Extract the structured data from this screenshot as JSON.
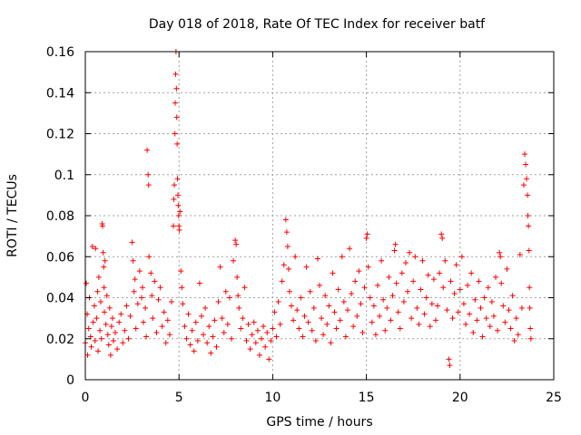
{
  "chart_data": {
    "type": "scatter",
    "title": "Day 018 of 2018, Rate Of TEC Index for receiver batf",
    "xlabel": "GPS time / hours",
    "ylabel": "ROTI / TECUs",
    "xlim": [
      0,
      25
    ],
    "ylim": [
      0,
      0.16
    ],
    "xticks": [
      0,
      5,
      10,
      15,
      20,
      25
    ],
    "yticks": [
      0,
      0.02,
      0.04,
      0.06,
      0.08,
      0.1,
      0.12,
      0.14,
      0.16
    ],
    "xtick_labels": [
      "0",
      "5",
      "10",
      "15",
      "20",
      "25"
    ],
    "ytick_labels": [
      "0",
      "0.02",
      "0.04",
      "0.06",
      "0.08",
      "0.1",
      "0.12",
      "0.14",
      "0.16"
    ],
    "grid": true,
    "marker": "+",
    "color": "#ff0000",
    "series": [
      {
        "values": [
          [
            0.0,
            0.018
          ],
          [
            0.05,
            0.047
          ],
          [
            0.1,
            0.032
          ],
          [
            0.12,
            0.012
          ],
          [
            0.18,
            0.025
          ],
          [
            0.22,
            0.04
          ],
          [
            0.28,
            0.021
          ],
          [
            0.32,
            0.016
          ],
          [
            0.38,
            0.065
          ],
          [
            0.42,
            0.028
          ],
          [
            0.48,
            0.036
          ],
          [
            0.52,
            0.019
          ],
          [
            0.55,
            0.064
          ],
          [
            0.6,
            0.03
          ],
          [
            0.65,
            0.043
          ],
          [
            0.68,
            0.014
          ],
          [
            0.72,
            0.05
          ],
          [
            0.78,
            0.024
          ],
          [
            0.82,
            0.038
          ],
          [
            0.86,
            0.02
          ],
          [
            0.9,
            0.076
          ],
          [
            0.92,
            0.075
          ],
          [
            0.95,
            0.062
          ],
          [
            0.98,
            0.055
          ],
          [
            1.0,
            0.045
          ],
          [
            1.02,
            0.033
          ],
          [
            1.05,
            0.058
          ],
          [
            1.1,
            0.027
          ],
          [
            1.15,
            0.041
          ],
          [
            1.2,
            0.022
          ],
          [
            1.25,
            0.017
          ],
          [
            1.3,
            0.035
          ],
          [
            1.35,
            0.012
          ],
          [
            1.4,
            0.026
          ],
          [
            1.45,
            0.03
          ],
          [
            1.5,
            0.019
          ],
          [
            1.6,
            0.023
          ],
          [
            1.7,
            0.015
          ],
          [
            1.8,
            0.028
          ],
          [
            1.9,
            0.032
          ],
          [
            2.0,
            0.018
          ],
          [
            2.1,
            0.024
          ],
          [
            2.2,
            0.036
          ],
          [
            2.3,
            0.02
          ],
          [
            2.4,
            0.031
          ],
          [
            2.5,
            0.067
          ],
          [
            2.55,
            0.058
          ],
          [
            2.6,
            0.043
          ],
          [
            2.65,
            0.049
          ],
          [
            2.7,
            0.025
          ],
          [
            2.8,
            0.037
          ],
          [
            2.9,
            0.053
          ],
          [
            3.0,
            0.04
          ],
          [
            3.05,
            0.045
          ],
          [
            3.1,
            0.028
          ],
          [
            3.2,
            0.035
          ],
          [
            3.25,
            0.021
          ],
          [
            3.3,
            0.112
          ],
          [
            3.35,
            0.1
          ],
          [
            3.38,
            0.095
          ],
          [
            3.4,
            0.06
          ],
          [
            3.5,
            0.052
          ],
          [
            3.55,
            0.041
          ],
          [
            3.6,
            0.03
          ],
          [
            3.7,
            0.048
          ],
          [
            3.8,
            0.023
          ],
          [
            3.9,
            0.039
          ],
          [
            4.0,
            0.045
          ],
          [
            4.1,
            0.026
          ],
          [
            4.2,
            0.033
          ],
          [
            4.3,
            0.018
          ],
          [
            4.4,
            0.029
          ],
          [
            4.5,
            0.022
          ],
          [
            4.6,
            0.038
          ],
          [
            4.7,
            0.075
          ],
          [
            4.72,
            0.088
          ],
          [
            4.75,
            0.095
          ],
          [
            4.78,
            0.12
          ],
          [
            4.8,
            0.135
          ],
          [
            4.82,
            0.149
          ],
          [
            4.84,
            0.16
          ],
          [
            4.86,
            0.142
          ],
          [
            4.88,
            0.128
          ],
          [
            4.9,
            0.115
          ],
          [
            4.92,
            0.098
          ],
          [
            4.94,
            0.09
          ],
          [
            4.96,
            0.085
          ],
          [
            4.98,
            0.08
          ],
          [
            5.0,
            0.075
          ],
          [
            5.02,
            0.073
          ],
          [
            5.05,
            0.082
          ],
          [
            5.1,
            0.053
          ],
          [
            5.15,
            0.045
          ],
          [
            5.2,
            0.037
          ],
          [
            5.3,
            0.026
          ],
          [
            5.4,
            0.02
          ],
          [
            5.5,
            0.032
          ],
          [
            5.6,
            0.017
          ],
          [
            5.7,
            0.024
          ],
          [
            5.8,
            0.014
          ],
          [
            5.9,
            0.028
          ],
          [
            6.0,
            0.019
          ],
          [
            6.1,
            0.047
          ],
          [
            6.2,
            0.031
          ],
          [
            6.3,
            0.022
          ],
          [
            6.4,
            0.035
          ],
          [
            6.5,
            0.018
          ],
          [
            6.6,
            0.026
          ],
          [
            6.7,
            0.013
          ],
          [
            6.8,
            0.021
          ],
          [
            6.9,
            0.029
          ],
          [
            7.0,
            0.016
          ],
          [
            7.1,
            0.038
          ],
          [
            7.2,
            0.055
          ],
          [
            7.3,
            0.03
          ],
          [
            7.4,
            0.023
          ],
          [
            7.5,
            0.043
          ],
          [
            7.6,
            0.027
          ],
          [
            7.7,
            0.04
          ],
          [
            7.8,
            0.02
          ],
          [
            7.9,
            0.058
          ],
          [
            8.0,
            0.068
          ],
          [
            8.05,
            0.066
          ],
          [
            8.1,
            0.05
          ],
          [
            8.15,
            0.041
          ],
          [
            8.2,
            0.035
          ],
          [
            8.3,
            0.025
          ],
          [
            8.4,
            0.03
          ],
          [
            8.5,
            0.045
          ],
          [
            8.6,
            0.019
          ],
          [
            8.7,
            0.027
          ],
          [
            8.8,
            0.015
          ],
          [
            8.9,
            0.022
          ],
          [
            9.0,
            0.028
          ],
          [
            9.1,
            0.018
          ],
          [
            9.2,
            0.024
          ],
          [
            9.3,
            0.012
          ],
          [
            9.4,
            0.02
          ],
          [
            9.5,
            0.026
          ],
          [
            9.6,
            0.016
          ],
          [
            9.7,
            0.023
          ],
          [
            9.8,
            0.01
          ],
          [
            9.9,
            0.019
          ],
          [
            10.0,
            0.025
          ],
          [
            10.1,
            0.033
          ],
          [
            10.2,
            0.021
          ],
          [
            10.3,
            0.038
          ],
          [
            10.4,
            0.027
          ],
          [
            10.5,
            0.048
          ],
          [
            10.6,
            0.056
          ],
          [
            10.7,
            0.078
          ],
          [
            10.75,
            0.072
          ],
          [
            10.8,
            0.065
          ],
          [
            10.85,
            0.054
          ],
          [
            10.9,
            0.043
          ],
          [
            11.0,
            0.036
          ],
          [
            11.1,
            0.029
          ],
          [
            11.2,
            0.06
          ],
          [
            11.3,
            0.034
          ],
          [
            11.4,
            0.025
          ],
          [
            11.5,
            0.04
          ],
          [
            11.6,
            0.021
          ],
          [
            11.7,
            0.031
          ],
          [
            11.8,
            0.055
          ],
          [
            11.9,
            0.028
          ],
          [
            12.0,
            0.043
          ],
          [
            12.1,
            0.024
          ],
          [
            12.2,
            0.035
          ],
          [
            12.3,
            0.019
          ],
          [
            12.4,
            0.059
          ],
          [
            12.5,
            0.046
          ],
          [
            12.6,
            0.03
          ],
          [
            12.7,
            0.022
          ],
          [
            12.8,
            0.041
          ],
          [
            12.9,
            0.027
          ],
          [
            13.0,
            0.036
          ],
          [
            13.1,
            0.018
          ],
          [
            13.2,
            0.052
          ],
          [
            13.3,
            0.033
          ],
          [
            13.4,
            0.025
          ],
          [
            13.5,
            0.044
          ],
          [
            13.6,
            0.029
          ],
          [
            13.7,
            0.06
          ],
          [
            13.8,
            0.038
          ],
          [
            13.9,
            0.021
          ],
          [
            14.0,
            0.034
          ],
          [
            14.1,
            0.064
          ],
          [
            14.2,
            0.042
          ],
          [
            14.3,
            0.026
          ],
          [
            14.4,
            0.048
          ],
          [
            14.5,
            0.031
          ],
          [
            14.6,
            0.053
          ],
          [
            14.7,
            0.037
          ],
          [
            14.8,
            0.023
          ],
          [
            14.9,
            0.045
          ],
          [
            15.0,
            0.069
          ],
          [
            15.05,
            0.071
          ],
          [
            15.1,
            0.055
          ],
          [
            15.2,
            0.04
          ],
          [
            15.3,
            0.028
          ],
          [
            15.4,
            0.036
          ],
          [
            15.5,
            0.022
          ],
          [
            15.6,
            0.046
          ],
          [
            15.7,
            0.031
          ],
          [
            15.8,
            0.058
          ],
          [
            15.9,
            0.039
          ],
          [
            16.0,
            0.024
          ],
          [
            16.1,
            0.035
          ],
          [
            16.2,
            0.05
          ],
          [
            16.3,
            0.029
          ],
          [
            16.4,
            0.041
          ],
          [
            16.5,
            0.063
          ],
          [
            16.55,
            0.066
          ],
          [
            16.6,
            0.047
          ],
          [
            16.7,
            0.033
          ],
          [
            16.8,
            0.025
          ],
          [
            16.9,
            0.052
          ],
          [
            17.0,
            0.038
          ],
          [
            17.1,
            0.057
          ],
          [
            17.2,
            0.043
          ],
          [
            17.3,
            0.062
          ],
          [
            17.4,
            0.03
          ],
          [
            17.5,
            0.048
          ],
          [
            17.6,
            0.06
          ],
          [
            17.7,
            0.035
          ],
          [
            17.8,
            0.027
          ],
          [
            17.9,
            0.044
          ],
          [
            18.0,
            0.058
          ],
          [
            18.1,
            0.032
          ],
          [
            18.2,
            0.04
          ],
          [
            18.3,
            0.051
          ],
          [
            18.4,
            0.026
          ],
          [
            18.5,
            0.037
          ],
          [
            18.6,
            0.049
          ],
          [
            18.7,
            0.029
          ],
          [
            18.8,
            0.036
          ],
          [
            18.9,
            0.052
          ],
          [
            19.0,
            0.071
          ],
          [
            19.05,
            0.069
          ],
          [
            19.1,
            0.045
          ],
          [
            19.2,
            0.058
          ],
          [
            19.3,
            0.034
          ],
          [
            19.4,
            0.01
          ],
          [
            19.45,
            0.007
          ],
          [
            19.5,
            0.048
          ],
          [
            19.6,
            0.03
          ],
          [
            19.7,
            0.042
          ],
          [
            19.8,
            0.056
          ],
          [
            19.9,
            0.033
          ],
          [
            20.0,
            0.044
          ],
          [
            20.1,
            0.06
          ],
          [
            20.2,
            0.037
          ],
          [
            20.3,
            0.027
          ],
          [
            20.4,
            0.046
          ],
          [
            20.5,
            0.032
          ],
          [
            20.6,
            0.052
          ],
          [
            20.7,
            0.023
          ],
          [
            20.8,
            0.039
          ],
          [
            20.9,
            0.029
          ],
          [
            21.0,
            0.048
          ],
          [
            21.1,
            0.035
          ],
          [
            21.2,
            0.021
          ],
          [
            21.3,
            0.04
          ],
          [
            21.4,
            0.03
          ],
          [
            21.5,
            0.045
          ],
          [
            21.6,
            0.026
          ],
          [
            21.7,
            0.038
          ],
          [
            21.8,
            0.031
          ],
          [
            21.9,
            0.05
          ],
          [
            22.0,
            0.024
          ],
          [
            22.1,
            0.062
          ],
          [
            22.15,
            0.06
          ],
          [
            22.2,
            0.047
          ],
          [
            22.3,
            0.036
          ],
          [
            22.4,
            0.028
          ],
          [
            22.5,
            0.054
          ],
          [
            22.6,
            0.034
          ],
          [
            22.7,
            0.025
          ],
          [
            22.8,
            0.041
          ],
          [
            22.9,
            0.019
          ],
          [
            23.0,
            0.03
          ],
          [
            23.1,
            0.022
          ],
          [
            23.2,
            0.061
          ],
          [
            23.3,
            0.035
          ],
          [
            23.4,
            0.095
          ],
          [
            23.45,
            0.11
          ],
          [
            23.5,
            0.105
          ],
          [
            23.55,
            0.098
          ],
          [
            23.6,
            0.09
          ],
          [
            23.62,
            0.08
          ],
          [
            23.65,
            0.075
          ],
          [
            23.68,
            0.063
          ],
          [
            23.7,
            0.045
          ],
          [
            23.72,
            0.035
          ],
          [
            23.75,
            0.025
          ],
          [
            23.78,
            0.02
          ]
        ]
      }
    ]
  }
}
